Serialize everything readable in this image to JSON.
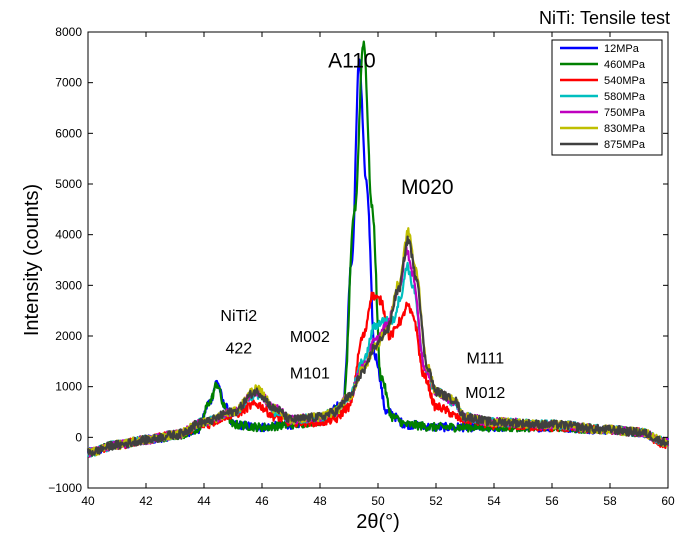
{
  "chart_data": {
    "type": "line",
    "title": "NiTi: Tensile test",
    "xlabel": "2θ(°)",
    "ylabel": "Intensity (counts)",
    "xlim": [
      40,
      60
    ],
    "ylim": [
      -1000,
      8000
    ],
    "xticks": [
      "40",
      "42",
      "44",
      "46",
      "48",
      "50",
      "52",
      "54",
      "56",
      "58",
      "60"
    ],
    "yticks": [
      "−1000",
      "0",
      "1000",
      "2000",
      "3000",
      "4000",
      "5000",
      "6000",
      "7000",
      "8000"
    ],
    "grid": false,
    "legend_position": "top-right",
    "series": [
      {
        "name": "12MPa",
        "color": "#0000ff",
        "points": [
          [
            40,
            -300
          ],
          [
            41,
            -150
          ],
          [
            42,
            -50
          ],
          [
            43,
            30
          ],
          [
            43.8,
            150
          ],
          [
            44.2,
            700
          ],
          [
            44.45,
            1100
          ],
          [
            44.7,
            650
          ],
          [
            45,
            250
          ],
          [
            46,
            200
          ],
          [
            47,
            250
          ],
          [
            48,
            320
          ],
          [
            48.8,
            700
          ],
          [
            49.1,
            3500
          ],
          [
            49.35,
            7400
          ],
          [
            49.6,
            5000
          ],
          [
            49.9,
            1600
          ],
          [
            50.3,
            500
          ],
          [
            51,
            250
          ],
          [
            52,
            200
          ],
          [
            54,
            200
          ],
          [
            56,
            200
          ],
          [
            58,
            150
          ],
          [
            59,
            100
          ],
          [
            60,
            -100
          ]
        ]
      },
      {
        "name": "460MPa",
        "color": "#008000",
        "points": [
          [
            40,
            -300
          ],
          [
            41,
            -150
          ],
          [
            42,
            -50
          ],
          [
            43,
            30
          ],
          [
            43.8,
            150
          ],
          [
            44.2,
            700
          ],
          [
            44.45,
            1050
          ],
          [
            44.7,
            600
          ],
          [
            45,
            250
          ],
          [
            46,
            200
          ],
          [
            47,
            250
          ],
          [
            48,
            320
          ],
          [
            48.8,
            600
          ],
          [
            49.2,
            4500
          ],
          [
            49.5,
            7800
          ],
          [
            49.8,
            4500
          ],
          [
            50.1,
            1200
          ],
          [
            50.5,
            400
          ],
          [
            51,
            250
          ],
          [
            52,
            200
          ],
          [
            54,
            200
          ],
          [
            56,
            200
          ],
          [
            58,
            150
          ],
          [
            59,
            100
          ],
          [
            60,
            -100
          ]
        ]
      },
      {
        "name": "540MPa",
        "color": "#ff0000",
        "points": [
          [
            40,
            -300
          ],
          [
            41,
            -150
          ],
          [
            42,
            -50
          ],
          [
            43,
            50
          ],
          [
            44,
            250
          ],
          [
            45,
            450
          ],
          [
            45.8,
            650
          ],
          [
            46.5,
            400
          ],
          [
            47,
            300
          ],
          [
            48,
            300
          ],
          [
            48.5,
            350
          ],
          [
            49,
            600
          ],
          [
            49.5,
            2000
          ],
          [
            49.8,
            2800
          ],
          [
            50.1,
            2700
          ],
          [
            50.4,
            2000
          ],
          [
            50.8,
            2300
          ],
          [
            51,
            2600
          ],
          [
            51.2,
            2400
          ],
          [
            51.6,
            1200
          ],
          [
            52,
            600
          ],
          [
            53,
            350
          ],
          [
            54,
            250
          ],
          [
            56,
            200
          ],
          [
            58,
            150
          ],
          [
            59,
            100
          ],
          [
            60,
            -150
          ]
        ]
      },
      {
        "name": "580MPa",
        "color": "#00bfbf",
        "points": [
          [
            40,
            -300
          ],
          [
            41,
            -150
          ],
          [
            42,
            -50
          ],
          [
            43,
            50
          ],
          [
            44,
            300
          ],
          [
            45,
            500
          ],
          [
            45.8,
            850
          ],
          [
            46.5,
            500
          ],
          [
            47,
            350
          ],
          [
            48,
            400
          ],
          [
            48.5,
            500
          ],
          [
            49,
            800
          ],
          [
            49.5,
            1500
          ],
          [
            49.9,
            2200
          ],
          [
            50.2,
            2300
          ],
          [
            50.5,
            2300
          ],
          [
            50.8,
            2800
          ],
          [
            51,
            3400
          ],
          [
            51.2,
            3000
          ],
          [
            51.6,
            1400
          ],
          [
            52,
            900
          ],
          [
            52.6,
            700
          ],
          [
            53,
            400
          ],
          [
            54,
            300
          ],
          [
            56,
            250
          ],
          [
            58,
            150
          ],
          [
            59,
            100
          ],
          [
            60,
            -100
          ]
        ]
      },
      {
        "name": "750MPa",
        "color": "#bf00bf",
        "points": [
          [
            40,
            -300
          ],
          [
            41,
            -150
          ],
          [
            42,
            -50
          ],
          [
            43,
            50
          ],
          [
            44,
            300
          ],
          [
            45,
            500
          ],
          [
            45.8,
            900
          ],
          [
            46.5,
            550
          ],
          [
            47,
            350
          ],
          [
            48,
            400
          ],
          [
            48.5,
            500
          ],
          [
            49,
            800
          ],
          [
            49.5,
            1400
          ],
          [
            49.9,
            1900
          ],
          [
            50.3,
            2200
          ],
          [
            50.7,
            2900
          ],
          [
            51,
            3700
          ],
          [
            51.2,
            3200
          ],
          [
            51.6,
            1400
          ],
          [
            52,
            900
          ],
          [
            52.6,
            700
          ],
          [
            53,
            400
          ],
          [
            54,
            300
          ],
          [
            56,
            250
          ],
          [
            58,
            150
          ],
          [
            59,
            100
          ],
          [
            60,
            -100
          ]
        ]
      },
      {
        "name": "830MPa",
        "color": "#bfbf00",
        "points": [
          [
            40,
            -300
          ],
          [
            41,
            -150
          ],
          [
            42,
            -50
          ],
          [
            43,
            50
          ],
          [
            44,
            300
          ],
          [
            45,
            500
          ],
          [
            45.8,
            950
          ],
          [
            46.5,
            550
          ],
          [
            47,
            350
          ],
          [
            48,
            400
          ],
          [
            48.5,
            500
          ],
          [
            49,
            800
          ],
          [
            49.5,
            1350
          ],
          [
            49.9,
            1800
          ],
          [
            50.3,
            2100
          ],
          [
            50.7,
            3000
          ],
          [
            51.05,
            4050
          ],
          [
            51.3,
            3300
          ],
          [
            51.7,
            1400
          ],
          [
            52,
            900
          ],
          [
            52.6,
            750
          ],
          [
            53,
            400
          ],
          [
            54,
            300
          ],
          [
            56,
            250
          ],
          [
            58,
            150
          ],
          [
            59,
            100
          ],
          [
            60,
            -100
          ]
        ]
      },
      {
        "name": "875MPa",
        "color": "#404040",
        "points": [
          [
            40,
            -300
          ],
          [
            41,
            -150
          ],
          [
            42,
            -50
          ],
          [
            43,
            50
          ],
          [
            44,
            300
          ],
          [
            45,
            500
          ],
          [
            45.8,
            900
          ],
          [
            46.5,
            550
          ],
          [
            47,
            350
          ],
          [
            48,
            400
          ],
          [
            48.5,
            500
          ],
          [
            49,
            800
          ],
          [
            49.5,
            1300
          ],
          [
            49.9,
            1800
          ],
          [
            50.3,
            2100
          ],
          [
            50.7,
            2900
          ],
          [
            51.05,
            3900
          ],
          [
            51.3,
            3200
          ],
          [
            51.7,
            1400
          ],
          [
            52,
            900
          ],
          [
            52.6,
            750
          ],
          [
            53,
            400
          ],
          [
            54,
            300
          ],
          [
            56,
            250
          ],
          [
            58,
            150
          ],
          [
            59,
            100
          ],
          [
            60,
            -100
          ]
        ]
      }
    ],
    "annotations": [
      {
        "text": "A110",
        "x": 49.1,
        "y": 7300,
        "size": "big"
      },
      {
        "text": "M020",
        "x": 51.7,
        "y": 4800,
        "size": "big"
      },
      {
        "text": "NiTi2",
        "x": 45.2,
        "y": 2300,
        "size": "normal"
      },
      {
        "text": "422",
        "x": 45.2,
        "y": 1650,
        "size": "normal"
      },
      {
        "text": "M002",
        "x": 47.65,
        "y": 1880,
        "size": "normal"
      },
      {
        "text": "M101",
        "x": 47.65,
        "y": 1160,
        "size": "normal"
      },
      {
        "text": "M111",
        "x": 53.7,
        "y": 1460,
        "size": "normal"
      },
      {
        "text": "M012",
        "x": 53.7,
        "y": 780,
        "size": "normal"
      }
    ]
  }
}
